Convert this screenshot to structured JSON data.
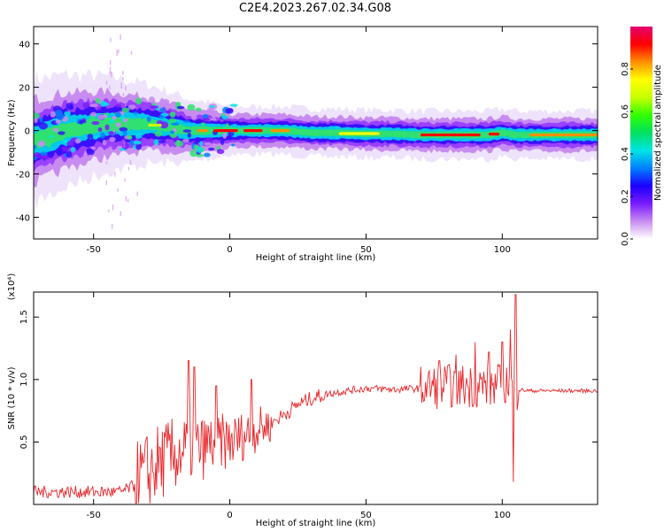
{
  "title": "C2E4.2023.267.02.34.G08",
  "chart_data": [
    {
      "type": "heatmap",
      "xlabel": "Height of straight line (km)",
      "ylabel": "Frequency (Hz)",
      "xlim": [
        -72,
        135
      ],
      "ylim": [
        -50,
        48
      ],
      "xticks": [
        -50,
        0,
        50,
        100
      ],
      "yticks": [
        -40,
        -20,
        0,
        20,
        40
      ],
      "ridge": {
        "x": [
          -72,
          -65,
          -60,
          -55,
          -50,
          -45,
          -40,
          -35,
          -30,
          -25,
          -20,
          -15,
          -10,
          -5,
          0,
          10,
          20,
          30,
          40,
          50,
          60,
          70,
          80,
          90,
          95,
          100,
          105,
          110,
          120,
          135
        ],
        "y": [
          -5,
          -2,
          0,
          1,
          2,
          3,
          3,
          3,
          3,
          2,
          1,
          0,
          0,
          0,
          0,
          0,
          0,
          -1,
          -1,
          -1.5,
          -1.5,
          -2,
          -2,
          -2,
          -2,
          -1,
          -2,
          -2,
          -2,
          -2
        ]
      },
      "colorbar": {
        "label": "Normalized spectral amplitude",
        "ticks": [
          "0.0",
          "0.2",
          "0.4",
          "0.6",
          "0.8"
        ],
        "colors": [
          "#ffffff",
          "#c88cf0",
          "#7a1bff",
          "#1a00ff",
          "#0080ff",
          "#00e5e5",
          "#00e060",
          "#30ff00",
          "#c8ff00",
          "#ffff00",
          "#ff9000",
          "#ff0000",
          "#e4006e"
        ]
      }
    },
    {
      "type": "line",
      "xlabel": "Height of straight line (km)",
      "ylabel": "SNR (10 * v/v)",
      "yscale_label": "(x10⁴)",
      "xlim": [
        -72,
        135
      ],
      "ylim": [
        0,
        1.7
      ],
      "xticks": [
        -50,
        0,
        50,
        100
      ],
      "yticks": [
        0.5,
        1.0,
        1.5
      ],
      "ytick_labels": [
        "0.5",
        "1.0",
        "1.5"
      ],
      "color": "#e8262a",
      "trend": {
        "x": [
          -72,
          -60,
          -50,
          -40,
          -35,
          -30,
          -25,
          -20,
          -15,
          -10,
          -5,
          0,
          5,
          10,
          15,
          20,
          25,
          30,
          35,
          40,
          50,
          60,
          70,
          80,
          90,
          95,
          100,
          103,
          105,
          110,
          120,
          135
        ],
        "y": [
          0.1,
          0.1,
          0.1,
          0.1,
          0.15,
          0.25,
          0.35,
          0.4,
          0.45,
          0.45,
          0.5,
          0.5,
          0.55,
          0.6,
          0.65,
          0.72,
          0.8,
          0.85,
          0.88,
          0.9,
          0.93,
          0.92,
          0.93,
          0.95,
          0.95,
          0.95,
          0.95,
          1.0,
          0.92,
          0.91,
          0.91,
          0.91
        ]
      },
      "spikes": [
        {
          "x": -15,
          "y": 1.15
        },
        {
          "x": -13,
          "y": 1.1
        },
        {
          "x": -5,
          "y": 0.95
        },
        {
          "x": 8,
          "y": 1.0
        },
        {
          "x": 77,
          "y": 1.15
        },
        {
          "x": 83,
          "y": 1.2
        },
        {
          "x": 90,
          "y": 1.3
        },
        {
          "x": 95,
          "y": 1.22
        },
        {
          "x": 100,
          "y": 1.3
        },
        {
          "x": 103,
          "y": 1.4
        },
        {
          "x": 105,
          "y": 1.68
        },
        {
          "x": 104,
          "y": 0.18
        }
      ]
    }
  ]
}
